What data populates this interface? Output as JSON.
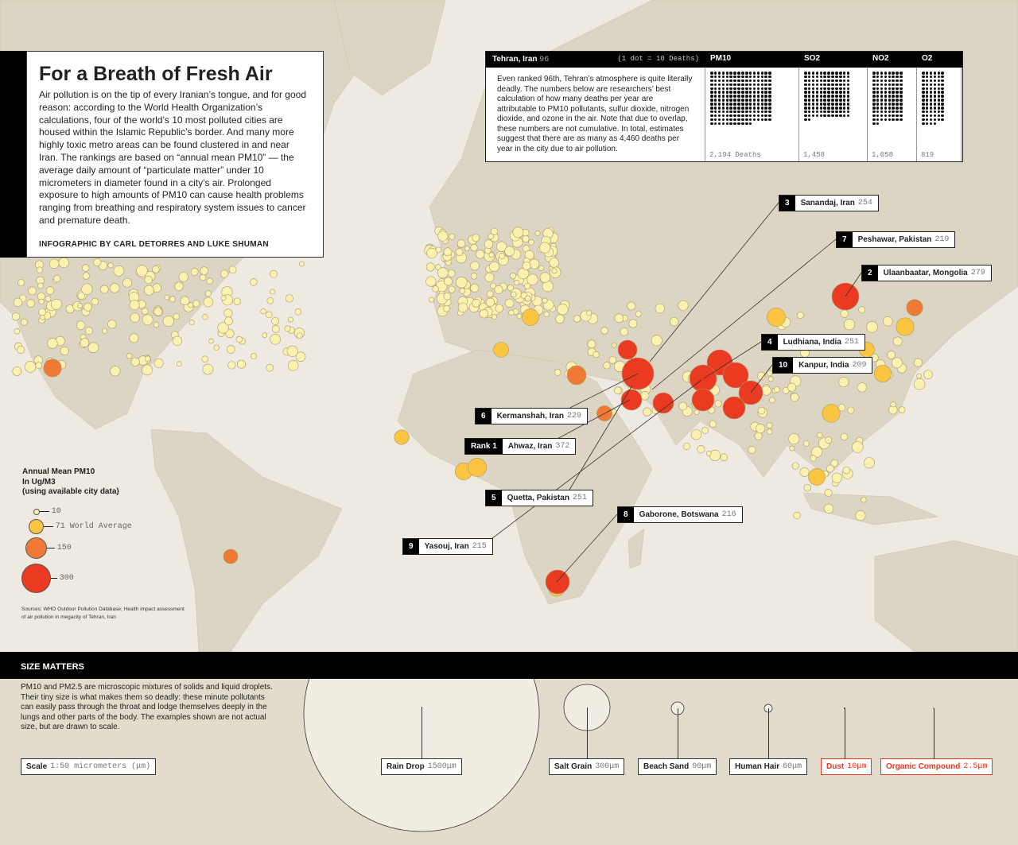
{
  "intro": {
    "title": "For a Breath of Fresh Air",
    "body": "Air pollution is on the tip of every Iranian’s tongue, and for good reason: according to the World Health Organization’s calculations, four of the world’s 10 most polluted cities are housed within the Islamic Republic’s border. And many more highly toxic metro areas can be found clustered in and near Iran. The rankings are based on “annual mean PM10” — the average daily amount of “particulate matter” under 10 micrometers in diameter found in a city’s air. Prolonged exposure to high amounts of PM10 can cause health problems ranging from breathing and respiratory system issues to cancer and premature death.",
    "credit": "INFOGRAPHIC BY CARL DETORRES AND LUKE SHUMAN"
  },
  "tehran": {
    "city": "Tehran, Iran",
    "rank": "96",
    "unit_note": "(1 dot = 10 Deaths)",
    "text": "Even ranked 96th, Tehran’s atmosphere is quite literally deadly. The numbers below are researchers’ best calculation of how many deaths per year are attributable to PM10 pollutants, sulfur dioxide, nitrogen dioxide, and ozone in the air. Note that due to overlap, these numbers are not cumulative. In total, estimates suggest that there are as many as 4,460 deaths per year in the city due to air pollution.",
    "pollutants": [
      {
        "name": "PM10",
        "deaths": 2194,
        "label": "2,194 Deaths"
      },
      {
        "name": "SO2",
        "deaths": 1458,
        "label": "1,458"
      },
      {
        "name": "NO2",
        "deaths": 1058,
        "label": "1,058"
      },
      {
        "name": "O2",
        "deaths": 819,
        "label": "819"
      }
    ]
  },
  "rankings": [
    {
      "rank": "3",
      "city": "Sanandaj, Iran",
      "value": "254"
    },
    {
      "rank": "7",
      "city": "Peshawar, Pakistan",
      "value": "219"
    },
    {
      "rank": "2",
      "city": "Ulaanbaatar, Mongolia",
      "value": "279"
    },
    {
      "rank": "4",
      "city": "Ludhiana, India",
      "value": "251"
    },
    {
      "rank": "10",
      "city": "Kanpur, India",
      "value": "209"
    },
    {
      "rank": "6",
      "city": "Kermanshah, Iran",
      "value": "229"
    },
    {
      "rank": "Rank 1",
      "city": "Ahwaz, Iran",
      "value": "372"
    },
    {
      "rank": "5",
      "city": "Quetta, Pakistan",
      "value": "251"
    },
    {
      "rank": "8",
      "city": "Gaborone, Botswana",
      "value": "216"
    },
    {
      "rank": "9",
      "city": "Yasouj, Iran",
      "value": "215"
    }
  ],
  "legend": {
    "title1": "Annual Mean PM10",
    "title2": "In Ug/M3",
    "title3": "(using available city data)",
    "items": [
      {
        "label": "10"
      },
      {
        "label": "71 World Average"
      },
      {
        "label": "150"
      },
      {
        "label": "300"
      }
    ],
    "sources": "Sources: WHO Outdoor Pollution Database; Health impact assessment of air pollution in megacity of Tehran, Iran"
  },
  "size": {
    "heading": "SIZE MATTERS",
    "text": "PM10 and PM2.5 are microscopic mixtures of solids and liquid droplets. Their tiny size is what makes them so deadly: these minute pollutants can easily pass through the throat and lodge themselves deeply in the lungs and other parts of the body. The examples shown are not actual size, but are drawn to scale.",
    "scale_label": "Scale",
    "scale_value": "1:50 micrometers (μm)",
    "items": [
      {
        "name": "Rain Drop",
        "size": "1500μm"
      },
      {
        "name": "Salt Grain",
        "size": "300μm"
      },
      {
        "name": "Beach Sand",
        "size": "90μm"
      },
      {
        "name": "Human Hair",
        "size": "60μm"
      },
      {
        "name": "Dust",
        "size": "10μm"
      },
      {
        "name": "Organic Compound",
        "size": "2.5μm"
      }
    ]
  },
  "colors": {
    "low": "#fdf1b0",
    "avg": "#fbc441",
    "mid": "#f07a35",
    "high": "#ea3b22",
    "land": "#ddd5c3",
    "ocean": "#eeeae1"
  }
}
